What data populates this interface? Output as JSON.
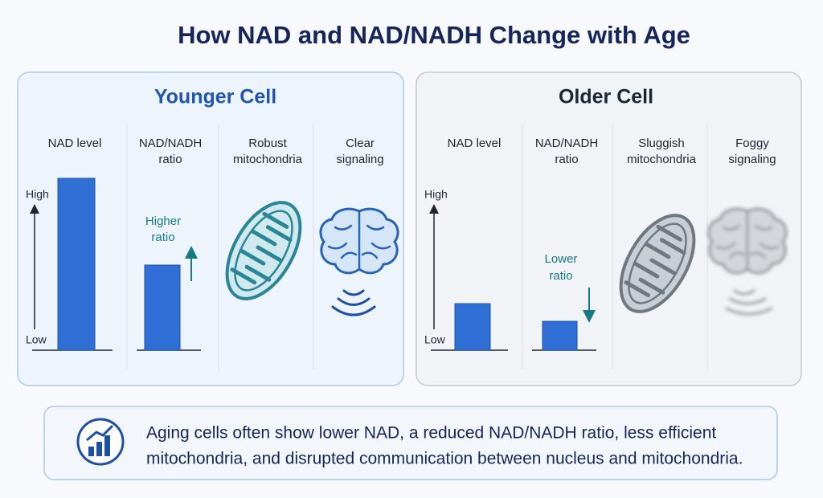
{
  "title": "How NAD and NAD/NADH Change with Age",
  "panels": [
    {
      "heading": "Younger Cell",
      "columns": [
        [
          "NAD level"
        ],
        [
          "NAD/NADH",
          "ratio"
        ],
        [
          "Robust",
          "mitochondria"
        ],
        [
          "Clear",
          "signaling"
        ]
      ],
      "axis_high": "High",
      "axis_low": "Low",
      "annotation": [
        "Higher",
        "ratio"
      ]
    },
    {
      "heading": "Older Cell",
      "columns": [
        [
          "NAD level"
        ],
        [
          "NAD/NADH",
          "ratio"
        ],
        [
          "Sluggish",
          "mitochondria"
        ],
        [
          "Foggy",
          "signaling"
        ]
      ],
      "axis_high": "High",
      "axis_low": "Low",
      "annotation": [
        "Lower",
        "ratio"
      ]
    }
  ],
  "summary": [
    "Aging cells often show lower NAD, a reduced NAD/NADH ratio, less efficient",
    "mitochondria, and disrupted communication between nucleus and mitochondria."
  ]
}
